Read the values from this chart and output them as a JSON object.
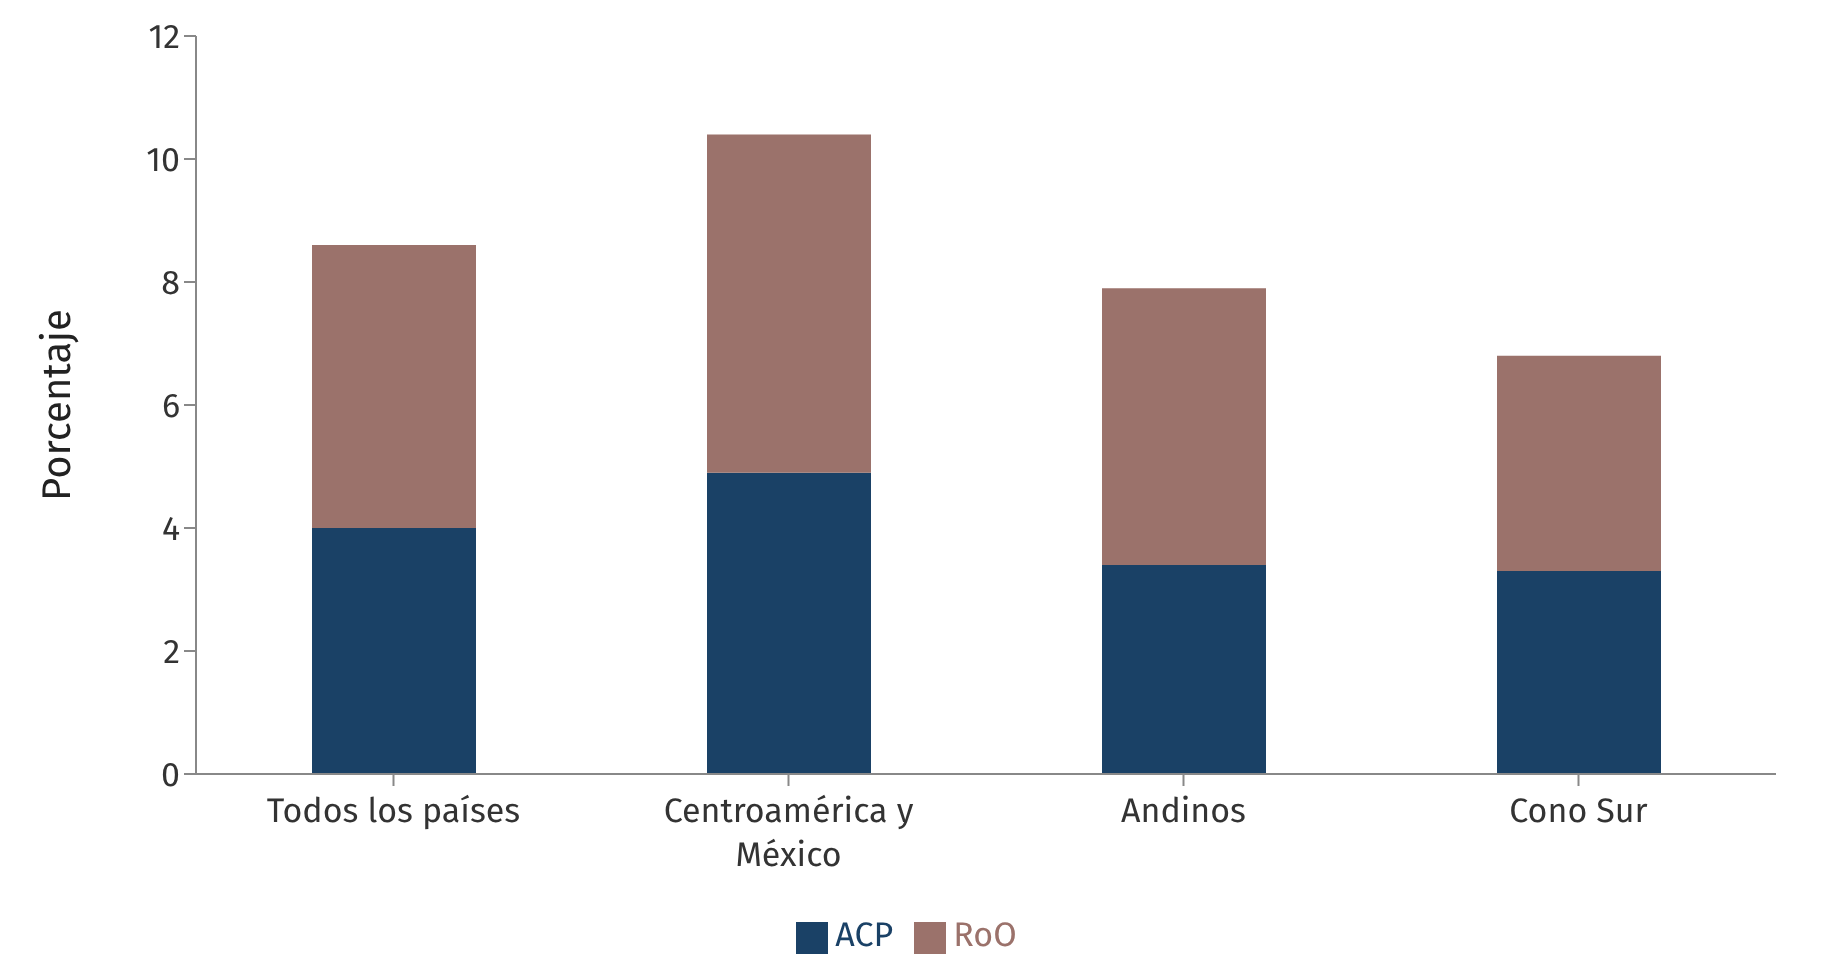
{
  "chart_data": {
    "type": "bar",
    "stacked": true,
    "ylabel": "Porcentaje",
    "categories": [
      "Todos los países",
      "Centroamérica y México",
      "Andinos",
      "Cono Sur"
    ],
    "series": [
      {
        "name": "ACP",
        "color": "#1a4166",
        "values": [
          4.0,
          4.9,
          3.4,
          3.3
        ]
      },
      {
        "name": "RoO",
        "color": "#9b726b",
        "values": [
          4.6,
          5.5,
          4.5,
          3.5
        ]
      }
    ],
    "ylim": [
      0,
      12
    ],
    "yticks": [
      0,
      2,
      4,
      6,
      8,
      10,
      12
    ],
    "grid": false,
    "legend": "bottom"
  }
}
